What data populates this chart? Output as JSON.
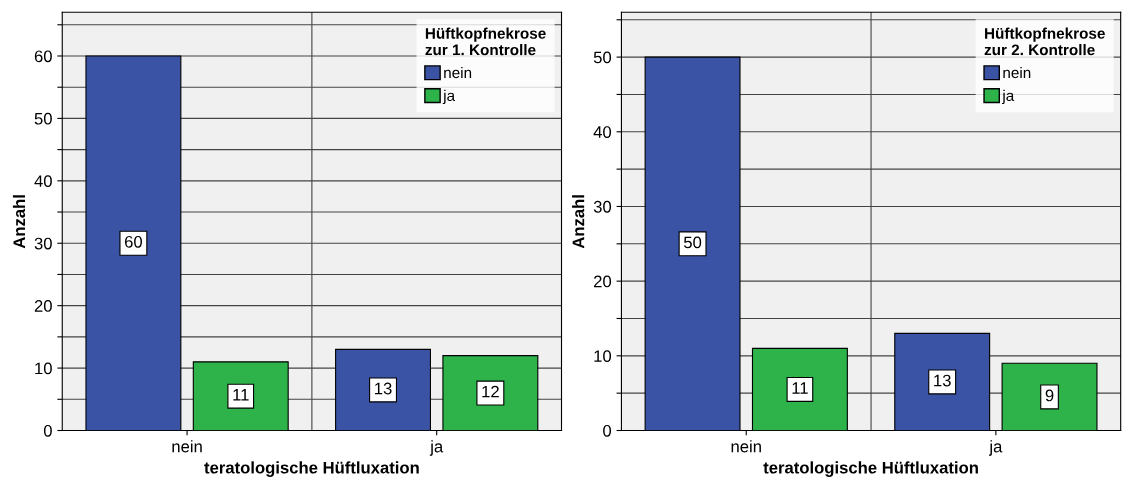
{
  "chart_data": [
    {
      "type": "bar",
      "categories": [
        "nein",
        "ja"
      ],
      "xlabel": "teratologische Hüftluxation",
      "ylabel": "Anzahl",
      "legend_title": "Hüftkopfnekrose\nzur 1. Kontrolle",
      "legend": "top right",
      "grid": "y",
      "data_labels": true,
      "ylim": [
        0,
        67
      ],
      "yticks": [
        0,
        {
          "value": 5,
          "label": null
        },
        10,
        {
          "value": 15,
          "label": null
        },
        20,
        {
          "value": 25,
          "label": null
        },
        30,
        {
          "value": 35,
          "label": null
        },
        40,
        {
          "value": 45,
          "label": null
        },
        50,
        {
          "value": 55,
          "label": null
        },
        60,
        {
          "value": 65,
          "label": null
        }
      ],
      "series": [
        {
          "name": "nein",
          "color": "#3a53a4",
          "values": [
            60,
            13
          ]
        },
        {
          "name": "ja",
          "color": "#2db34a",
          "values": [
            11,
            12
          ]
        }
      ]
    },
    {
      "type": "bar",
      "categories": [
        "nein",
        "ja"
      ],
      "xlabel": "teratologische Hüftluxation",
      "ylabel": "Anzahl",
      "legend_title": "Hüftkopfnekrose\nzur 2. Kontrolle",
      "legend": "top right",
      "grid": "y",
      "data_labels": true,
      "ylim": [
        0,
        56
      ],
      "yticks": [
        0,
        {
          "value": 5,
          "label": null
        },
        10,
        {
          "value": 15,
          "label": null
        },
        20,
        {
          "value": 25,
          "label": null
        },
        30,
        {
          "value": 35,
          "label": null
        },
        40,
        {
          "value": 45,
          "label": null
        },
        50,
        {
          "value": 55,
          "label": null
        }
      ],
      "series": [
        {
          "name": "nein",
          "color": "#3a53a4",
          "values": [
            50,
            13
          ]
        },
        {
          "name": "ja",
          "color": "#2db34a",
          "values": [
            11,
            9
          ]
        }
      ]
    }
  ]
}
